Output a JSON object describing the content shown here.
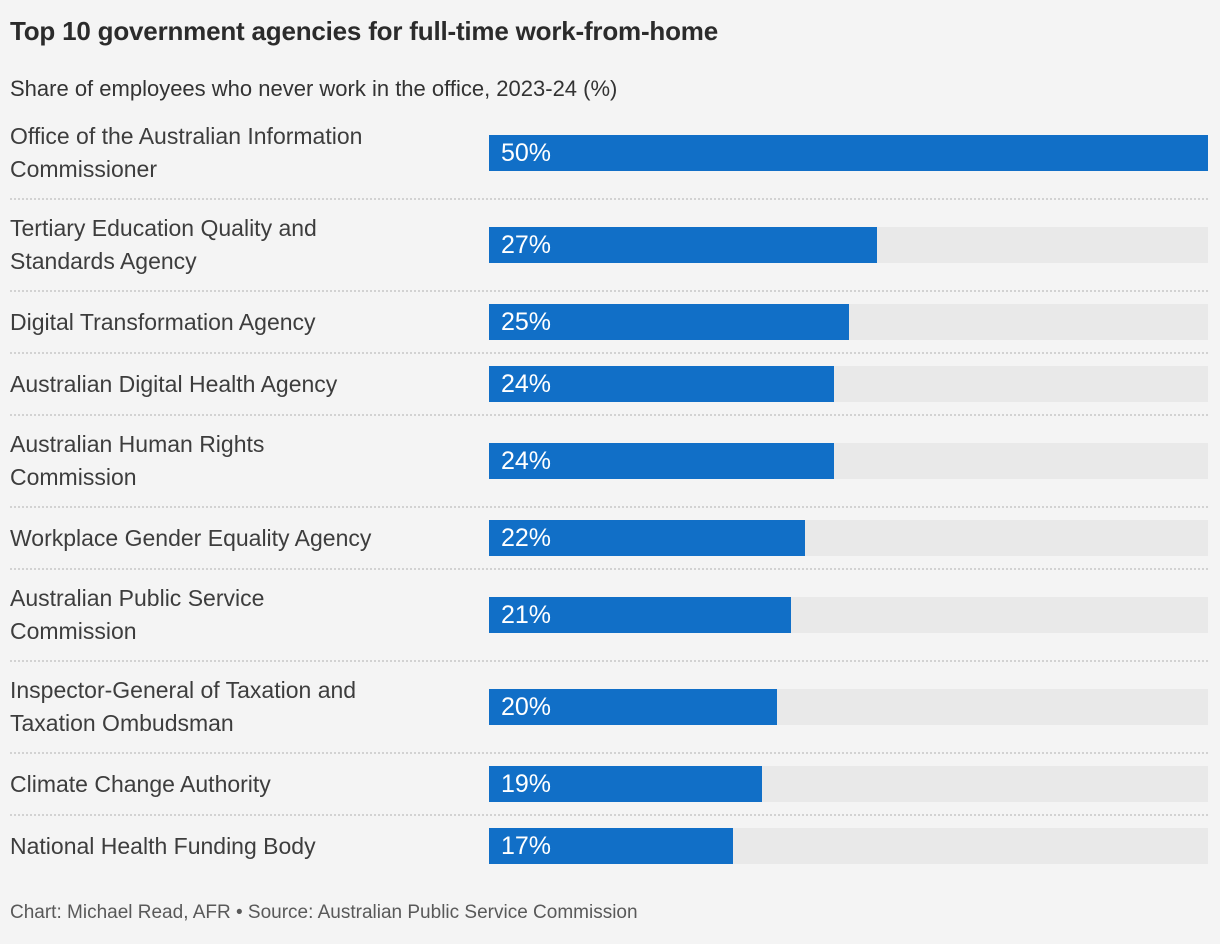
{
  "header": {
    "title": "Top 10 government agencies for full-time work-from-home",
    "subtitle": "Share of employees who never work in the office, 2023-24 (%)"
  },
  "chart_data": {
    "type": "bar",
    "orientation": "horizontal",
    "title": "Top 10 government agencies for full-time work-from-home",
    "subtitle": "Share of employees who never work in the office, 2023-24 (%)",
    "xlabel": "",
    "ylabel": "",
    "xlim": [
      0,
      50
    ],
    "grid": false,
    "legend": false,
    "value_unit": "%",
    "categories": [
      "Office of the Australian Information\nCommissioner",
      "Tertiary Education Quality and\nStandards Agency",
      "Digital Transformation Agency",
      "Australian Digital Health Agency",
      "Australian Human Rights\nCommission",
      "Workplace Gender Equality Agency",
      "Australian Public Service\nCommission",
      "Inspector-General of Taxation and\nTaxation Ombudsman",
      "Climate Change Authority",
      "National Health Funding Body"
    ],
    "values": [
      50,
      27,
      25,
      24,
      24,
      22,
      21,
      20,
      19,
      17
    ],
    "value_labels": [
      "50%",
      "27%",
      "25%",
      "24%",
      "24%",
      "22%",
      "21%",
      "20%",
      "19%",
      "17%"
    ]
  },
  "footer": {
    "credit": "Chart: Michael Read, AFR • Source: Australian Public Service Commission"
  },
  "colors": {
    "background": "#f4f4f4",
    "bar": "#116fc7",
    "bar_track": "#e9e9e9",
    "title_text": "#2b2b2b",
    "label_text": "#3d3d3d",
    "value_text": "#ffffff",
    "footer_text": "#595959",
    "separator": "#d2d2d2"
  }
}
